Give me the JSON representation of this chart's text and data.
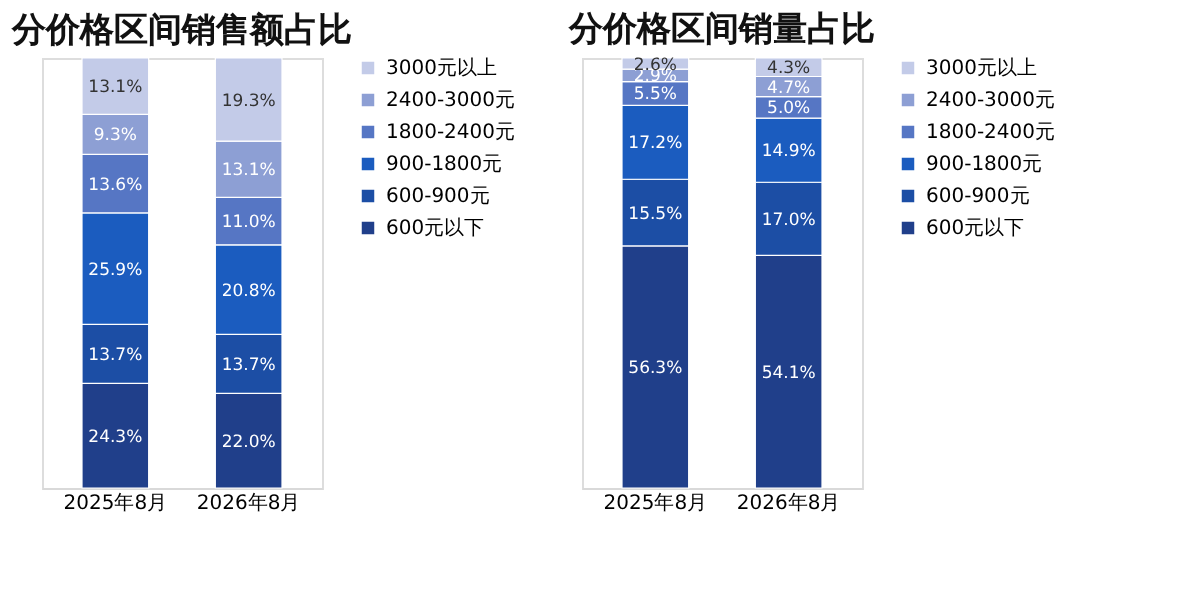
{
  "chart_data": [
    {
      "type": "bar",
      "title": "分价格区间销售额占比",
      "stacked": true,
      "legend": "right",
      "grid": false,
      "tick_labels": "x",
      "categories": [
        "2025年8月",
        "2026年8月"
      ],
      "series": [
        {
          "name": "600元以下",
          "color": "#203f8a",
          "values": [
            24.3,
            22.0
          ],
          "value_labels": [
            "24.3%",
            "22.0%"
          ]
        },
        {
          "name": "600-900元",
          "color": "#1c4ea5",
          "values": [
            13.7,
            13.7
          ],
          "value_labels": [
            "13.7%",
            "13.7%"
          ]
        },
        {
          "name": "900-1800元",
          "color": "#1b5cbf",
          "values": [
            25.9,
            20.8
          ],
          "value_labels": [
            "25.9%",
            "20.8%"
          ]
        },
        {
          "name": "1800-2400元",
          "color": "#5676c4",
          "values": [
            13.6,
            11.0
          ],
          "value_labels": [
            "13.6%",
            "11.0%"
          ]
        },
        {
          "name": "2400-3000元",
          "color": "#8d9fd4",
          "values": [
            9.3,
            13.1
          ],
          "value_labels": [
            "9.3%",
            "13.1%"
          ]
        },
        {
          "name": "3000元以上",
          "color": "#c3cbe8",
          "values": [
            13.1,
            19.3
          ],
          "value_labels": [
            "13.1%",
            "19.3%"
          ]
        }
      ]
    },
    {
      "type": "bar",
      "title": "分价格区间销量占比",
      "stacked": true,
      "legend": "right",
      "grid": false,
      "tick_labels": "x",
      "categories": [
        "2025年8月",
        "2026年8月"
      ],
      "series": [
        {
          "name": "600元以下",
          "color": "#203f8a",
          "values": [
            56.3,
            54.1
          ],
          "value_labels": [
            "56.3%",
            "54.1%"
          ]
        },
        {
          "name": "600-900元",
          "color": "#1c4ea5",
          "values": [
            15.5,
            17.0
          ],
          "value_labels": [
            "15.5%",
            "17.0%"
          ]
        },
        {
          "name": "900-1800元",
          "color": "#1b5cbf",
          "values": [
            17.2,
            14.9
          ],
          "value_labels": [
            "17.2%",
            "14.9%"
          ]
        },
        {
          "name": "1800-2400元",
          "color": "#5676c4",
          "values": [
            5.5,
            5.0
          ],
          "value_labels": [
            "5.5%",
            "5.0%"
          ]
        },
        {
          "name": "2400-3000元",
          "color": "#8d9fd4",
          "values": [
            2.9,
            4.7
          ],
          "value_labels": [
            "2.9%",
            "4.7%"
          ]
        },
        {
          "name": "3000元以上",
          "color": "#c3cbe8",
          "values": [
            2.6,
            4.3
          ],
          "value_labels": [
            "2.6%",
            "4.3%"
          ]
        }
      ]
    }
  ]
}
